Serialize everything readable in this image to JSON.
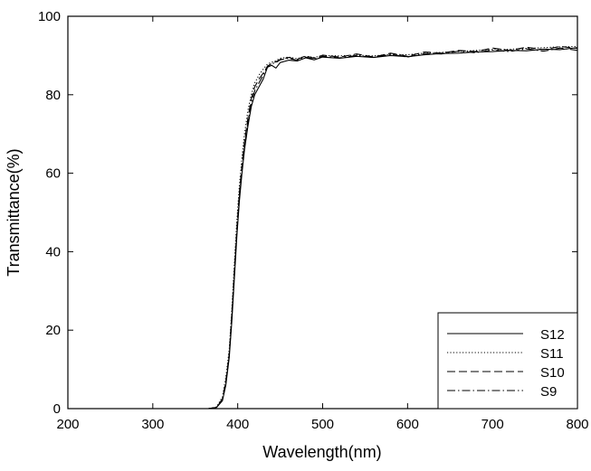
{
  "chart_data": {
    "type": "line",
    "xlabel": "Wavelength(nm)",
    "ylabel": "Transmittance(%)",
    "xlim": [
      200,
      800
    ],
    "ylim": [
      0,
      100
    ],
    "x_ticks": [
      200,
      300,
      400,
      500,
      600,
      700,
      800
    ],
    "y_ticks": [
      0,
      20,
      40,
      60,
      80,
      100
    ],
    "x_tick_labels": [
      "200",
      "300",
      "400",
      "500",
      "600",
      "700",
      "800"
    ],
    "y_tick_labels": [
      "0",
      "20",
      "40",
      "60",
      "80",
      "100"
    ],
    "grid": false,
    "legend_position": "bottom-right",
    "series": [
      {
        "name": "S12",
        "style": "solid",
        "color": "#000000",
        "x": [
          200,
          365,
          375,
          382,
          386,
          390,
          393,
          396,
          399,
          402,
          405,
          408,
          412,
          416,
          420,
          425,
          430,
          435,
          440,
          445,
          450,
          460,
          470,
          480,
          490,
          500,
          520,
          540,
          560,
          580,
          600,
          620,
          640,
          660,
          680,
          700,
          720,
          740,
          760,
          780,
          800
        ],
        "y": [
          0,
          0,
          0.3,
          2,
          6,
          13,
          22,
          33,
          44,
          53,
          60,
          66,
          72,
          77,
          80,
          82,
          84,
          87,
          87.5,
          86.8,
          88.2,
          88.8,
          88.6,
          89.4,
          88.9,
          89.6,
          89.3,
          89.8,
          89.5,
          90.0,
          89.7,
          90.2,
          90.5,
          90.6,
          90.9,
          91.0,
          91.3,
          91.2,
          91.6,
          91.5,
          92.0
        ]
      },
      {
        "name": "S11",
        "style": "dotted",
        "color": "#000000",
        "x": [
          200,
          365,
          375,
          382,
          386,
          390,
          393,
          396,
          399,
          402,
          405,
          408,
          412,
          416,
          420,
          425,
          430,
          435,
          440,
          445,
          450,
          460,
          470,
          480,
          490,
          500,
          520,
          540,
          560,
          580,
          600,
          620,
          640,
          660,
          680,
          700,
          720,
          740,
          760,
          780,
          800
        ],
        "y": [
          0,
          0,
          0.4,
          3,
          8,
          15,
          25,
          37,
          48,
          57,
          64,
          70,
          76,
          80,
          83,
          85,
          86.5,
          87.8,
          88.3,
          88.7,
          89.3,
          89.6,
          89.2,
          89.8,
          89.5,
          90.0,
          89.9,
          90.1,
          89.9,
          90.3,
          90.2,
          90.6,
          90.8,
          91.0,
          91.3,
          91.5,
          91.6,
          91.8,
          92.0,
          92.2,
          92.3
        ]
      },
      {
        "name": "S10",
        "style": "dashed",
        "color": "#000000",
        "x": [
          200,
          365,
          375,
          382,
          386,
          390,
          393,
          396,
          399,
          402,
          405,
          408,
          412,
          416,
          420,
          425,
          430,
          435,
          440,
          445,
          450,
          460,
          470,
          480,
          490,
          500,
          520,
          540,
          560,
          580,
          600,
          620,
          640,
          660,
          680,
          700,
          720,
          740,
          760,
          780,
          800
        ],
        "y": [
          0,
          0,
          0.3,
          2.5,
          7,
          14,
          24,
          35,
          46,
          55,
          62,
          68,
          74,
          79,
          82,
          84,
          85.5,
          87.2,
          88.0,
          88.4,
          89.0,
          89.5,
          89.0,
          89.9,
          89.3,
          90.1,
          89.6,
          90.4,
          89.6,
          90.6,
          89.8,
          90.9,
          90.6,
          91.3,
          91.0,
          91.9,
          91.3,
          92.1,
          91.5,
          92.3,
          91.8
        ]
      },
      {
        "name": "S9",
        "style": "dashdot",
        "color": "#000000",
        "x": [
          200,
          365,
          375,
          382,
          386,
          390,
          393,
          396,
          399,
          402,
          405,
          408,
          412,
          416,
          420,
          425,
          430,
          435,
          440,
          445,
          450,
          460,
          470,
          480,
          490,
          500,
          520,
          540,
          560,
          580,
          600,
          620,
          640,
          660,
          680,
          700,
          720,
          740,
          760,
          780,
          800
        ],
        "y": [
          0,
          0,
          0.3,
          2.2,
          6.5,
          13.5,
          23,
          34,
          45,
          54,
          61,
          67,
          73,
          78,
          81,
          83,
          85,
          87.3,
          87.9,
          88.2,
          88.9,
          89.3,
          88.8,
          89.6,
          89.0,
          89.8,
          89.4,
          90.0,
          89.5,
          90.3,
          89.6,
          90.5,
          90.4,
          91.1,
          90.7,
          91.4,
          91.0,
          91.7,
          91.1,
          91.9,
          91.3
        ]
      }
    ]
  }
}
